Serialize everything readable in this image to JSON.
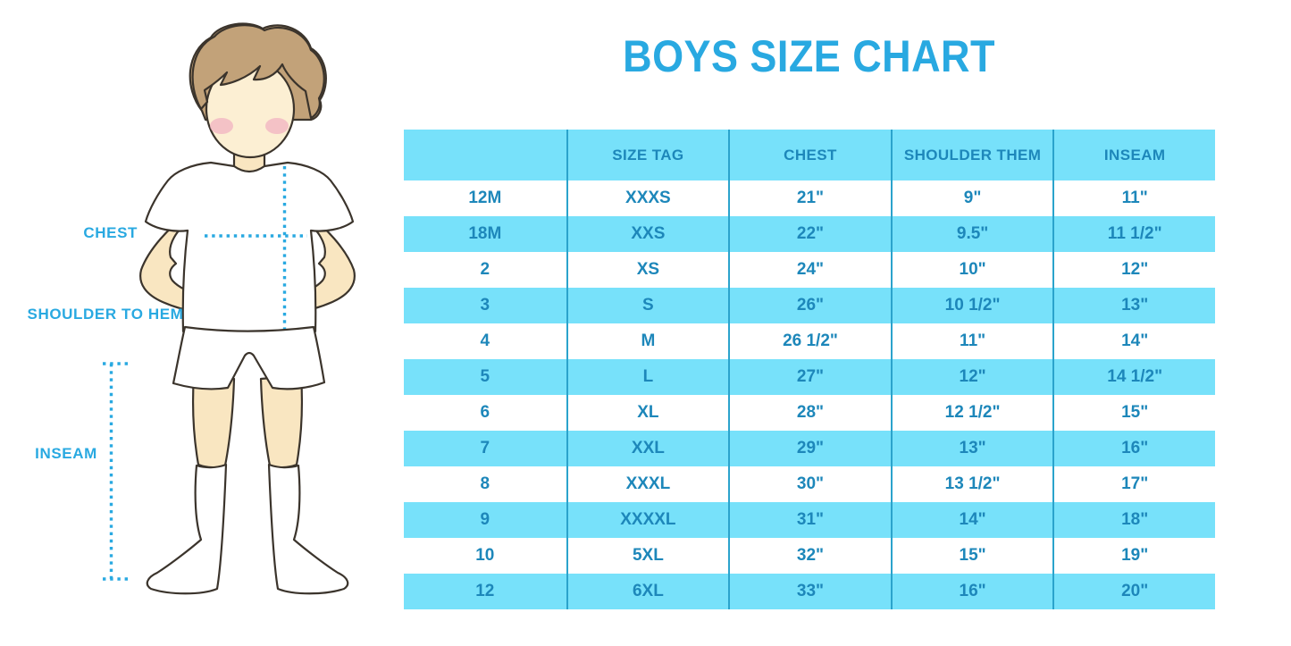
{
  "title": "BOYS SIZE CHART",
  "figure": {
    "labels": {
      "chest": "CHEST",
      "shoulder_to_hem": "SHOULDER TO HEM",
      "inseam": "INSEAM"
    }
  },
  "chart_data": {
    "type": "table",
    "title": "BOYS SIZE CHART",
    "columns": [
      "",
      "SIZE TAG",
      "CHEST",
      "SHOULDER THEM",
      "INSEAM"
    ],
    "rows": [
      [
        "12M",
        "XXXS",
        "21\"",
        "9\"",
        "11\""
      ],
      [
        "18M",
        "XXS",
        "22\"",
        "9.5\"",
        "11 1/2\""
      ],
      [
        "2",
        "XS",
        "24\"",
        "10\"",
        "12\""
      ],
      [
        "3",
        "S",
        "26\"",
        "10 1/2\"",
        "13\""
      ],
      [
        "4",
        "M",
        "26 1/2\"",
        "11\"",
        "14\""
      ],
      [
        "5",
        "L",
        "27\"",
        "12\"",
        "14 1/2\""
      ],
      [
        "6",
        "XL",
        "28\"",
        "12 1/2\"",
        "15\""
      ],
      [
        "7",
        "XXL",
        "29\"",
        "13\"",
        "16\""
      ],
      [
        "8",
        "XXXL",
        "30\"",
        "13 1/2\"",
        "17\""
      ],
      [
        "9",
        "XXXXL",
        "31\"",
        "14\"",
        "18\""
      ],
      [
        "10",
        "5XL",
        "32\"",
        "15\"",
        "19\""
      ],
      [
        "12",
        "6XL",
        "33\"",
        "16\"",
        "20\""
      ]
    ],
    "row_striping": "alternating white and light blue, starting white",
    "grid": "vertical dividers between all five columns, no outer border"
  },
  "colors": {
    "accent_blue": "#29A9E1",
    "row_stripe_blue": "#77E1FA",
    "table_text_blue": "#1D87BA",
    "column_divider_blue": "#2BA3CC",
    "outline": "#3B342C",
    "hair_brown": "#C2A279",
    "skin": "#F9E6C1",
    "face_skin": "#FCEFD3",
    "blush_pink": "#F2B3C1",
    "background": "#FFFFFF"
  }
}
